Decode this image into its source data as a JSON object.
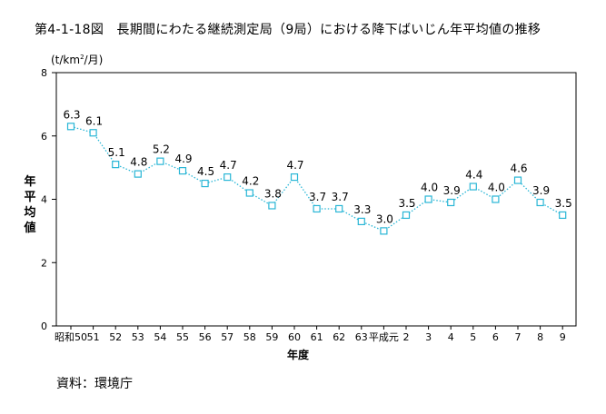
{
  "title": "第4-1-18図　長期間にわたる継続測定局（9局）における降下ばいじん年平均値の推移",
  "unit": {
    "main": "(t/km",
    "sup": "2",
    "rest": "/月)"
  },
  "source": "資料：環境庁",
  "chart_data": {
    "type": "line",
    "ylabel": "年平均値",
    "xlabel": "年度",
    "ylim": [
      0,
      8
    ],
    "yticks": [
      0,
      2,
      4,
      6,
      8
    ],
    "categories": [
      "昭和50",
      "51",
      "52",
      "53",
      "54",
      "55",
      "56",
      "57",
      "58",
      "59",
      "60",
      "61",
      "62",
      "63",
      "平成元",
      "2",
      "3",
      "4",
      "5",
      "6",
      "7",
      "8",
      "9"
    ],
    "values": [
      6.3,
      6.1,
      5.1,
      4.8,
      5.2,
      4.9,
      4.5,
      4.7,
      4.2,
      3.8,
      4.7,
      3.7,
      3.7,
      3.3,
      3.0,
      3.5,
      4.0,
      3.9,
      4.4,
      4.0,
      4.6,
      3.9,
      3.5
    ],
    "data_labels": [
      "6.3",
      "6.1",
      "5.1",
      "4.8",
      "5.2",
      "4.9",
      "4.5",
      "4.7",
      "4.2",
      "3.8",
      "4.7",
      "3.7",
      "3.7",
      "3.3",
      "3.0",
      "3.5",
      "4.0",
      "3.9",
      "4.4",
      "4.0",
      "4.6",
      "3.9",
      "3.5"
    ],
    "grid": false,
    "line_style": "dotted",
    "marker": "square",
    "series_color": "#29b6d6"
  }
}
